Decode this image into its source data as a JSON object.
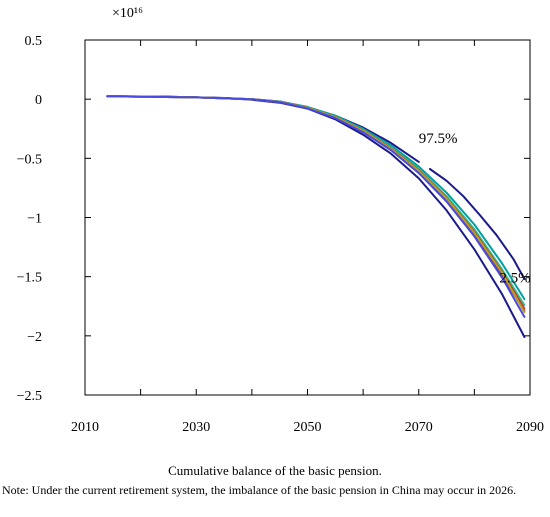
{
  "chart_data": {
    "type": "line",
    "title": "",
    "xlabel": "",
    "ylabel": "",
    "y_exponent_label": "×10¹⁶",
    "xlim": [
      2010,
      2090
    ],
    "ylim": [
      -2.5,
      0.5
    ],
    "x_ticks": [
      2010,
      2030,
      2050,
      2070,
      2090
    ],
    "y_ticks": [
      0.5,
      0,
      -0.5,
      -1,
      -1.5,
      -2,
      -2.5
    ],
    "y_tick_labels": [
      "0.5",
      "0",
      "−0.5",
      "−1",
      "−1.5",
      "−2",
      "−2.5"
    ],
    "grid": false,
    "annotations": [
      {
        "text": "97.5%",
        "x": 2070,
        "y": -0.37
      },
      {
        "text": "2.5%",
        "x": 2084.5,
        "y": -1.55
      }
    ],
    "series": [
      {
        "color": "#1a1a8c",
        "x": [
          2014,
          2025,
          2035,
          2040,
          2045,
          2050,
          2055,
          2060,
          2065,
          2070
        ],
        "values": [
          0.025,
          0.02,
          0.01,
          0.0,
          -0.02,
          -0.07,
          -0.14,
          -0.24,
          -0.37,
          -0.53
        ]
      },
      {
        "color": "#1a1a8c",
        "x": [
          2072,
          2075,
          2078,
          2081,
          2084,
          2087,
          2089
        ],
        "values": [
          -0.59,
          -0.69,
          -0.82,
          -0.98,
          -1.15,
          -1.35,
          -1.52
        ]
      },
      {
        "color": "#1a1a8c",
        "x": [
          2014,
          2025,
          2035,
          2040,
          2045,
          2050,
          2055,
          2060,
          2065,
          2070,
          2075,
          2080,
          2085,
          2089
        ],
        "values": [
          0.025,
          0.02,
          0.01,
          -0.005,
          -0.03,
          -0.08,
          -0.17,
          -0.3,
          -0.46,
          -0.67,
          -0.94,
          -1.27,
          -1.65,
          -2.01
        ]
      },
      {
        "color": "#6b2a8a",
        "x": [
          2014,
          2030,
          2040,
          2045,
          2050,
          2055,
          2060,
          2065,
          2070,
          2075,
          2080,
          2085,
          2089
        ],
        "values": [
          0.025,
          0.015,
          0.0,
          -0.025,
          -0.075,
          -0.155,
          -0.27,
          -0.42,
          -0.61,
          -0.85,
          -1.14,
          -1.49,
          -1.79
        ]
      },
      {
        "color": "#00a0a0",
        "x": [
          2014,
          2030,
          2040,
          2045,
          2050,
          2055,
          2060,
          2065,
          2070,
          2075,
          2080,
          2085,
          2089
        ],
        "values": [
          0.025,
          0.015,
          0.0,
          -0.02,
          -0.065,
          -0.14,
          -0.25,
          -0.39,
          -0.57,
          -0.79,
          -1.06,
          -1.39,
          -1.69
        ]
      },
      {
        "color": "#2ec08a",
        "x": [
          2014,
          2030,
          2040,
          2045,
          2050,
          2055,
          2060,
          2065,
          2070,
          2075,
          2080,
          2085,
          2089
        ],
        "values": [
          0.025,
          0.015,
          0.0,
          -0.022,
          -0.07,
          -0.148,
          -0.26,
          -0.405,
          -0.59,
          -0.82,
          -1.1,
          -1.44,
          -1.74
        ]
      },
      {
        "color": "#c23a3a",
        "x": [
          2014,
          2030,
          2040,
          2045,
          2050,
          2055,
          2060,
          2065,
          2070,
          2075,
          2080,
          2085,
          2089
        ],
        "values": [
          0.025,
          0.015,
          0.0,
          -0.023,
          -0.072,
          -0.15,
          -0.265,
          -0.415,
          -0.6,
          -0.835,
          -1.12,
          -1.46,
          -1.77
        ]
      },
      {
        "color": "#b8a020",
        "x": [
          2014,
          2030,
          2040,
          2045,
          2050,
          2055,
          2060,
          2065,
          2070,
          2075,
          2080,
          2085,
          2089
        ],
        "values": [
          0.025,
          0.015,
          0.0,
          -0.024,
          -0.073,
          -0.152,
          -0.268,
          -0.42,
          -0.605,
          -0.84,
          -1.13,
          -1.47,
          -1.8
        ]
      },
      {
        "color": "#4a4ae0",
        "x": [
          2014,
          2030,
          2040,
          2045,
          2050,
          2055,
          2060,
          2065,
          2070,
          2075,
          2080,
          2085,
          2089
        ],
        "values": [
          0.025,
          0.015,
          0.0,
          -0.026,
          -0.078,
          -0.16,
          -0.28,
          -0.43,
          -0.625,
          -0.865,
          -1.16,
          -1.51,
          -1.84
        ]
      }
    ]
  },
  "caption": "Cumulative balance of the basic pension.",
  "note": "Note: Under the current retirement system, the imbalance of the basic pension in China may occur in 2026."
}
